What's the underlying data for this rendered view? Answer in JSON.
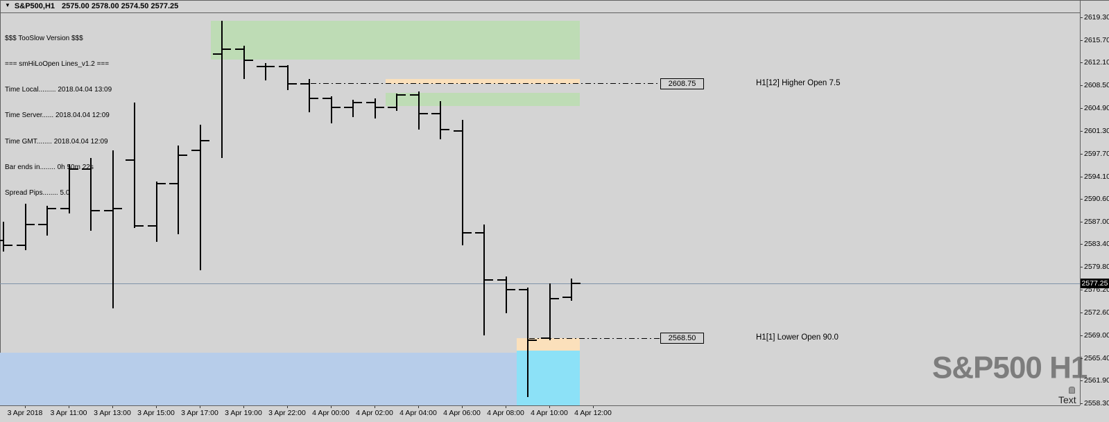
{
  "window": {
    "dropdown_icon": "▼",
    "symbol_period": "S&P500,H1",
    "ohlc_summary": "2575.00 2578.00 2574.50 2577.25"
  },
  "info_panel": {
    "lines": [
      "$$$ TooSlow Version $$$",
      "=== smHiLoOpen Lines_v1.2 ===",
      "Time Local......... 2018.04.04 13:09",
      "Time Server...... 2018.04.04 12:09",
      "Time GMT........ 2018.04.04 12:09",
      "Bar ends in........ 0h 50m 22s",
      "Spread Pips........ 5.0"
    ]
  },
  "watermark": "S&P500 H1",
  "text_object": {
    "label": "Text"
  },
  "price_axis": {
    "current_label": "2577.25",
    "ticks": [
      "2619.30",
      "2615.70",
      "2612.10",
      "2608.50",
      "2604.90",
      "2601.30",
      "2597.70",
      "2594.10",
      "2590.60",
      "2587.00",
      "2583.40",
      "2579.80",
      "2576.20",
      "2572.60",
      "2569.00",
      "2565.40",
      "2561.90",
      "2558.30"
    ]
  },
  "time_axis": {
    "ticks": [
      "3 Apr 2018",
      "3 Apr 11:00",
      "3 Apr 13:00",
      "3 Apr 15:00",
      "3 Apr 17:00",
      "3 Apr 19:00",
      "3 Apr 22:00",
      "4 Apr 00:00",
      "4 Apr 02:00",
      "4 Apr 04:00",
      "4 Apr 06:00",
      "4 Apr 08:00",
      "4 Apr 10:00",
      "4 Apr 12:00"
    ]
  },
  "colors": {
    "background": "#d4d4d4",
    "bar": "#000000",
    "zone_green": "#bedcb5",
    "zone_peach": "#fbe0bb",
    "zone_cyan": "#8ce1f7",
    "zone_blue": "#b7cdea",
    "current_price_line": "#7e93a8",
    "current_price_tag_bg": "#000000",
    "current_price_tag_text": "#ffffff",
    "watermark": "#7d7d7d"
  },
  "chart_data": {
    "type": "ohlc-bar",
    "title": "S&P500 H1",
    "symbol": "S&P500",
    "timeframe": "H1",
    "grid": false,
    "ylim": [
      2557.9,
      2622.0
    ],
    "current_price": 2577.25,
    "bars": [
      {
        "o": 2584.0,
        "h": 2587.0,
        "l": 2582.25,
        "c": 2583.25
      },
      {
        "o": 2583.25,
        "h": 2589.75,
        "l": 2582.5,
        "c": 2586.5
      },
      {
        "o": 2586.5,
        "h": 2589.5,
        "l": 2584.75,
        "c": 2589.0
      },
      {
        "o": 2589.0,
        "h": 2596.0,
        "l": 2588.25,
        "c": 2595.25
      },
      {
        "o": 2595.25,
        "h": 2597.0,
        "l": 2585.5,
        "c": 2588.75
      },
      {
        "o": 2588.75,
        "h": 2598.25,
        "l": 2573.25,
        "c": 2589.0
      },
      {
        "o": 2596.75,
        "h": 2605.75,
        "l": 2586.0,
        "c": 2586.25
      },
      {
        "o": 2586.25,
        "h": 2593.25,
        "l": 2583.75,
        "c": 2593.0
      },
      {
        "o": 2593.0,
        "h": 2599.0,
        "l": 2585.0,
        "c": 2597.5
      },
      {
        "o": 2598.25,
        "h": 2602.25,
        "l": 2579.25,
        "c": 2599.75
      },
      {
        "o": 2613.5,
        "h": 2618.75,
        "l": 2597.0,
        "c": 2614.25
      },
      {
        "o": 2614.25,
        "h": 2614.75,
        "l": 2609.5,
        "c": 2612.5
      },
      {
        "o": 2611.5,
        "h": 2612.0,
        "l": 2609.25,
        "c": 2611.5
      },
      {
        "o": 2611.5,
        "h": 2611.75,
        "l": 2607.75,
        "c": 2608.75
      },
      {
        "o": 2608.75,
        "h": 2609.5,
        "l": 2604.25,
        "c": 2606.5
      },
      {
        "o": 2606.5,
        "h": 2606.75,
        "l": 2602.5,
        "c": 2605.0
      },
      {
        "o": 2605.0,
        "h": 2606.25,
        "l": 2603.5,
        "c": 2605.75
      },
      {
        "o": 2605.75,
        "h": 2606.5,
        "l": 2603.25,
        "c": 2605.0
      },
      {
        "o": 2605.0,
        "h": 2607.25,
        "l": 2604.5,
        "c": 2607.0
      },
      {
        "o": 2607.0,
        "h": 2607.5,
        "l": 2601.5,
        "c": 2604.0
      },
      {
        "o": 2604.0,
        "h": 2606.0,
        "l": 2600.0,
        "c": 2601.5
      },
      {
        "o": 2601.25,
        "h": 2603.0,
        "l": 2583.25,
        "c": 2585.25
      },
      {
        "o": 2585.25,
        "h": 2586.5,
        "l": 2569.0,
        "c": 2577.75
      },
      {
        "o": 2577.75,
        "h": 2578.25,
        "l": 2572.5,
        "c": 2576.25
      },
      {
        "o": 2576.25,
        "h": 2576.5,
        "l": 2559.25,
        "c": 2568.25
      },
      {
        "o": 2568.5,
        "h": 2577.25,
        "l": 2568.25,
        "c": 2574.75
      },
      {
        "o": 2575.0,
        "h": 2578.0,
        "l": 2574.5,
        "c": 2577.25
      }
    ],
    "levels": [
      {
        "value": 2608.75,
        "label": "2608.75",
        "annotation": "H1[12] Higher Open 7.5",
        "from_bar": 14
      },
      {
        "value": 2568.5,
        "label": "2568.50",
        "annotation": "H1[1] Lower Open 90.0",
        "from_bar": 24
      }
    ],
    "zones": [
      {
        "kind": "lower-demand-band",
        "color_key": "zone_blue",
        "top": 2566.25,
        "bottom": null,
        "from_bar": 0,
        "full_left": true
      },
      {
        "kind": "lower-demand-band",
        "color_key": "zone_cyan",
        "top": 2566.6,
        "bottom": null,
        "from_bar": 24
      },
      {
        "kind": "lower-open-band",
        "color_key": "zone_peach",
        "top": 2568.5,
        "bottom": 2566.6,
        "from_bar": 24
      },
      {
        "kind": "upper-supply-band",
        "color_key": "zone_green",
        "top": 2618.75,
        "bottom": 2612.55,
        "from_bar": 10
      },
      {
        "kind": "upper-open-band",
        "color_key": "zone_peach",
        "top": 2609.55,
        "bottom": 2608.75,
        "from_bar": 18
      },
      {
        "kind": "upper-supply-band",
        "color_key": "zone_green",
        "top": 2607.3,
        "bottom": 2605.2,
        "from_bar": 18
      }
    ]
  }
}
